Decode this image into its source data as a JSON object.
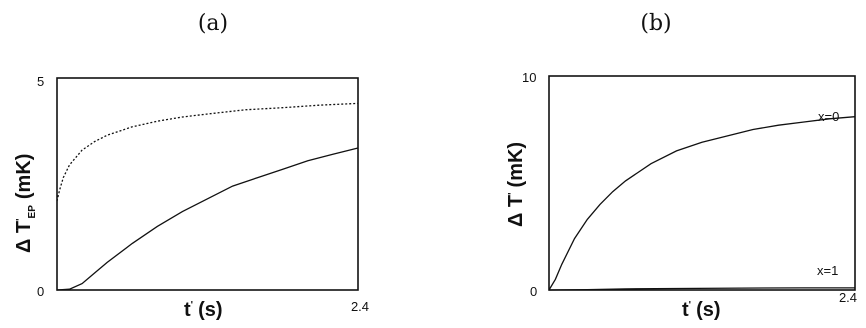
{
  "chart_data": [
    {
      "type": "line",
      "panel_label": "(a)",
      "xlabel": "t' (s)",
      "xlabel_main": "t",
      "xlabel_prime": "'",
      "xlabel_unit": "(s)",
      "ylabel": "Δ T'EP (mK)",
      "ylabel_main": "Δ T",
      "ylabel_prime": "'",
      "ylabel_sub": "EP",
      "ylabel_unit": "(mK)",
      "xlim": [
        0,
        2.4
      ],
      "ylim": [
        0,
        5
      ],
      "x_ticks": [
        "2.4"
      ],
      "y_ticks": [
        "0",
        "5"
      ],
      "grid": false,
      "series": [
        {
          "style": "dotted",
          "x": [
            0.0,
            0.02,
            0.05,
            0.1,
            0.2,
            0.3,
            0.4,
            0.6,
            0.8,
            1.0,
            1.2,
            1.5,
            1.8,
            2.1,
            2.4
          ],
          "y": [
            2.1,
            2.35,
            2.65,
            2.95,
            3.3,
            3.5,
            3.65,
            3.85,
            3.98,
            4.08,
            4.15,
            4.25,
            4.3,
            4.36,
            4.4
          ]
        },
        {
          "style": "solid",
          "x": [
            0.0,
            0.1,
            0.2,
            0.3,
            0.4,
            0.6,
            0.8,
            1.0,
            1.2,
            1.4,
            1.6,
            1.8,
            2.0,
            2.2,
            2.4
          ],
          "y": [
            0.0,
            0.02,
            0.15,
            0.4,
            0.65,
            1.1,
            1.5,
            1.85,
            2.15,
            2.45,
            2.65,
            2.85,
            3.05,
            3.2,
            3.35
          ]
        }
      ]
    },
    {
      "type": "line",
      "panel_label": "(b)",
      "xlabel": "t' (s)",
      "xlabel_main": "t",
      "xlabel_prime": "'",
      "xlabel_unit": "(s)",
      "ylabel": "Δ T' (mK)",
      "ylabel_main": "Δ T",
      "ylabel_prime": "'",
      "ylabel_unit": "(mK)",
      "xlim": [
        0,
        2.4
      ],
      "ylim": [
        0,
        10
      ],
      "x_ticks": [
        "2.4"
      ],
      "y_ticks": [
        "0",
        "10"
      ],
      "grid": false,
      "series": [
        {
          "name": "x=0",
          "style": "solid",
          "x": [
            0.0,
            0.05,
            0.1,
            0.2,
            0.3,
            0.4,
            0.5,
            0.6,
            0.8,
            1.0,
            1.2,
            1.4,
            1.6,
            1.8,
            2.0,
            2.2,
            2.4
          ],
          "y": [
            0.0,
            0.5,
            1.2,
            2.4,
            3.3,
            4.0,
            4.6,
            5.1,
            5.9,
            6.5,
            6.9,
            7.2,
            7.5,
            7.7,
            7.85,
            8.0,
            8.1
          ]
        },
        {
          "name": "x=1",
          "style": "solid",
          "x": [
            0.0,
            0.3,
            0.6,
            1.0,
            1.5,
            2.0,
            2.4
          ],
          "y": [
            0.0,
            0.02,
            0.05,
            0.07,
            0.09,
            0.1,
            0.1
          ]
        }
      ]
    }
  ]
}
